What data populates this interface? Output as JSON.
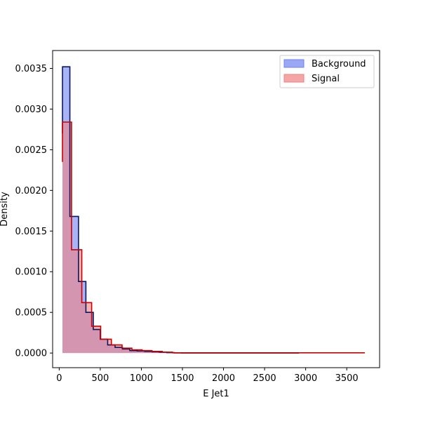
{
  "chart_data": {
    "type": "histogram",
    "xlabel": "E Jet1",
    "ylabel": "Density",
    "xlim": [
      -80,
      3900
    ],
    "ylim": [
      -0.00018,
      0.00372
    ],
    "x_ticks": [
      0,
      500,
      1000,
      1500,
      2000,
      2500,
      3000,
      3500
    ],
    "x_tick_labels": [
      "0",
      "500",
      "1000",
      "1500",
      "2000",
      "2500",
      "3000",
      "3500"
    ],
    "y_ticks": [
      0.0,
      0.0005,
      0.001,
      0.0015,
      0.002,
      0.0025,
      0.003,
      0.0035
    ],
    "y_tick_labels": [
      "0.0000",
      "0.0005",
      "0.0010",
      "0.0015",
      "0.0020",
      "0.0025",
      "0.0030",
      "0.0035"
    ],
    "legend_position": "top-right",
    "colors": {
      "background_fill": "#6f82f0",
      "background_line": "#0a1660",
      "signal_fill": "#f08080",
      "signal_line": "#cc0000"
    },
    "series": [
      {
        "name": "Background",
        "bin_edges": [
          40,
          130,
          235,
          325,
          415,
          500,
          590,
          680,
          770,
          860,
          950,
          1040,
          1130,
          1220,
          1310,
          1400,
          1490,
          2920
        ],
        "values": [
          0.00352,
          0.00168,
          0.00088,
          0.0005,
          0.00029,
          0.00017,
          0.0001,
          7e-05,
          5e-05,
          3e-05,
          2.5e-05,
          2e-05,
          1.5e-05,
          1e-05,
          5e-06,
          2e-06,
          1e-06
        ],
        "start_value": 0.0027
      },
      {
        "name": "Signal",
        "bin_edges": [
          40,
          150,
          275,
          395,
          505,
          635,
          765,
          885,
          1010,
          1130,
          1255,
          1380,
          3720
        ],
        "values": [
          0.00284,
          0.00127,
          0.00062,
          0.00033,
          0.00017,
          0.0001,
          6e-05,
          4e-05,
          3e-05,
          2e-05,
          1e-05,
          3e-06
        ],
        "start_value": 0.00235
      }
    ]
  }
}
